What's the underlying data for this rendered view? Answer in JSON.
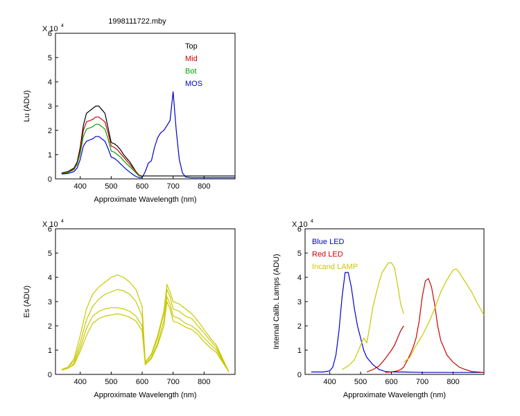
{
  "window": {
    "title": "1998111722.mby"
  },
  "chart_data": [
    {
      "id": "lu",
      "type": "line",
      "title": "1998111722.mby",
      "xlabel": "Approximate Wavelength (nm)",
      "ylabel": "Lu (ADU)",
      "exponent_label": "X 10",
      "exponent": "4",
      "xlim": [
        320,
        900
      ],
      "ylim": [
        0,
        6
      ],
      "xticks": [
        400,
        500,
        600,
        700,
        800
      ],
      "yticks": [
        0,
        1,
        2,
        3,
        4,
        5,
        6
      ],
      "legend_position": "top-right",
      "grid": false,
      "y_units": "x10^4 ADU",
      "series": [
        {
          "name": "Top",
          "color": "#000000",
          "x": [
            340,
            360,
            380,
            390,
            400,
            410,
            420,
            430,
            440,
            450,
            460,
            470,
            480,
            490,
            500,
            510,
            520,
            530,
            540,
            550,
            560,
            570,
            580,
            590,
            600,
            620,
            700,
            800,
            900
          ],
          "y": [
            0.25,
            0.3,
            0.45,
            0.7,
            1.3,
            2.2,
            2.7,
            2.8,
            2.9,
            3.0,
            3.0,
            2.85,
            2.7,
            2.1,
            1.5,
            1.45,
            1.35,
            1.2,
            1.0,
            0.85,
            0.7,
            0.5,
            0.3,
            0.15,
            0.12,
            0.12,
            0.12,
            0.12,
            0.12
          ]
        },
        {
          "name": "Mid",
          "color": "#cc0000",
          "x": [
            340,
            360,
            380,
            390,
            400,
            410,
            420,
            430,
            440,
            450,
            460,
            470,
            480,
            490,
            500,
            510,
            520,
            530,
            540,
            550,
            560,
            570,
            580,
            590,
            600
          ],
          "y": [
            0.25,
            0.28,
            0.42,
            0.65,
            1.2,
            2.0,
            2.35,
            2.4,
            2.45,
            2.55,
            2.55,
            2.45,
            2.35,
            1.9,
            1.35,
            1.3,
            1.2,
            1.05,
            0.9,
            0.75,
            0.6,
            0.45,
            0.3,
            0.15,
            0.12
          ]
        },
        {
          "name": "Bot",
          "color": "#00a000",
          "x": [
            340,
            360,
            380,
            390,
            400,
            410,
            420,
            430,
            440,
            450,
            460,
            470,
            480,
            490,
            500,
            510,
            520,
            530,
            540,
            550,
            560,
            570,
            580,
            590,
            600
          ],
          "y": [
            0.22,
            0.26,
            0.38,
            0.6,
            1.05,
            1.75,
            2.05,
            2.1,
            2.15,
            2.25,
            2.25,
            2.15,
            2.05,
            1.65,
            1.15,
            1.1,
            1.0,
            0.9,
            0.75,
            0.62,
            0.5,
            0.38,
            0.25,
            0.12,
            0.1
          ]
        },
        {
          "name": "MOS",
          "color": "#0000cc",
          "x": [
            340,
            360,
            380,
            390,
            400,
            410,
            420,
            430,
            440,
            450,
            460,
            470,
            480,
            490,
            500,
            510,
            520,
            530,
            540,
            550,
            560,
            570,
            580,
            590,
            600,
            610,
            620,
            630,
            640,
            650,
            660,
            670,
            680,
            690,
            695,
            700,
            705,
            710,
            720,
            730,
            740,
            760,
            800,
            900
          ],
          "y": [
            0.2,
            0.22,
            0.3,
            0.45,
            0.8,
            1.35,
            1.55,
            1.6,
            1.65,
            1.75,
            1.75,
            1.65,
            1.55,
            1.25,
            0.9,
            0.85,
            0.75,
            0.62,
            0.5,
            0.38,
            0.28,
            0.18,
            0.1,
            0.05,
            0.05,
            0.3,
            0.65,
            0.75,
            1.3,
            1.7,
            1.9,
            2.0,
            2.2,
            2.4,
            3.0,
            3.6,
            2.8,
            2.0,
            0.8,
            0.25,
            0.08,
            0.05,
            0.05,
            0.05
          ]
        }
      ]
    },
    {
      "id": "es",
      "type": "line",
      "xlabel": "Approximate Wavelength (nm)",
      "ylabel": "Es (ADU)",
      "exponent_label": "X 10",
      "exponent": "4",
      "xlim": [
        320,
        900
      ],
      "ylim": [
        0,
        6
      ],
      "xticks": [
        400,
        500,
        600,
        700,
        800
      ],
      "yticks": [
        0,
        1,
        2,
        3,
        4,
        5,
        6
      ],
      "grid": false,
      "y_units": "x10^4 ADU",
      "series": [
        {
          "color": "#c8c800",
          "x": [
            340,
            360,
            380,
            400,
            420,
            440,
            460,
            480,
            500,
            520,
            540,
            560,
            580,
            600,
            610,
            630,
            650,
            670,
            680,
            690,
            700,
            720,
            740,
            760,
            780,
            800,
            820,
            840,
            860,
            880
          ],
          "y": [
            0.2,
            0.3,
            0.55,
            1.3,
            2.25,
            2.8,
            3.1,
            3.3,
            3.4,
            3.5,
            3.45,
            3.3,
            3.0,
            2.4,
            0.5,
            0.8,
            1.5,
            2.5,
            3.5,
            3.2,
            2.7,
            2.6,
            2.4,
            2.3,
            2.0,
            1.7,
            1.4,
            1.1,
            0.6,
            0.1
          ]
        },
        {
          "color": "#c8c800",
          "x": [
            340,
            360,
            380,
            400,
            420,
            440,
            460,
            480,
            500,
            520,
            540,
            560,
            580,
            600,
            610,
            630,
            650,
            670,
            680,
            690,
            700,
            720,
            740,
            760,
            780,
            800,
            820,
            840,
            860,
            880
          ],
          "y": [
            0.2,
            0.3,
            0.65,
            1.6,
            2.7,
            3.3,
            3.6,
            3.8,
            4.0,
            4.1,
            4.0,
            3.8,
            3.5,
            2.8,
            0.5,
            0.85,
            1.6,
            2.6,
            3.7,
            3.4,
            3.0,
            2.9,
            2.7,
            2.5,
            2.2,
            1.85,
            1.5,
            1.2,
            0.65,
            0.1
          ]
        },
        {
          "color": "#c8c800",
          "x": [
            340,
            360,
            380,
            400,
            420,
            440,
            460,
            480,
            500,
            520,
            540,
            560,
            580,
            600,
            610,
            630,
            650,
            670,
            680,
            690,
            700,
            720,
            740,
            760,
            780,
            800,
            820,
            840,
            860,
            880
          ],
          "y": [
            0.18,
            0.25,
            0.45,
            1.1,
            1.9,
            2.4,
            2.6,
            2.7,
            2.75,
            2.75,
            2.7,
            2.6,
            2.4,
            2.0,
            0.45,
            0.7,
            1.3,
            2.2,
            3.2,
            2.9,
            2.4,
            2.3,
            2.1,
            2.0,
            1.8,
            1.5,
            1.25,
            1.0,
            0.55,
            0.1
          ]
        },
        {
          "color": "#c8c800",
          "x": [
            340,
            360,
            380,
            400,
            420,
            440,
            460,
            480,
            500,
            520,
            540,
            560,
            580,
            600,
            610,
            630,
            650,
            670,
            680,
            690,
            700,
            720,
            740,
            760,
            780,
            800,
            820,
            840,
            860,
            880
          ],
          "y": [
            0.18,
            0.25,
            0.4,
            0.95,
            1.6,
            2.1,
            2.3,
            2.4,
            2.45,
            2.5,
            2.45,
            2.35,
            2.2,
            1.8,
            0.4,
            0.65,
            1.2,
            2.0,
            3.0,
            2.7,
            2.2,
            2.1,
            1.95,
            1.85,
            1.65,
            1.35,
            1.1,
            0.9,
            0.5,
            0.1
          ]
        }
      ]
    },
    {
      "id": "lamps",
      "type": "line",
      "xlabel": "Approximate Wavelength (nm)",
      "ylabel": "Internal Calib. Lamps (ADU)",
      "exponent_label": "X 10",
      "exponent": "4",
      "xlim": [
        320,
        900
      ],
      "ylim": [
        0,
        6
      ],
      "xticks": [
        400,
        500,
        600,
        700,
        800
      ],
      "yticks": [
        0,
        1,
        2,
        3,
        4,
        5,
        6
      ],
      "legend_position": "top-left",
      "grid": false,
      "y_units": "x10^4 ADU",
      "series": [
        {
          "name": "Blue LED",
          "color": "#0000cc",
          "x": [
            340,
            380,
            400,
            410,
            420,
            430,
            440,
            450,
            460,
            470,
            480,
            490,
            500,
            510,
            520,
            540,
            560,
            580,
            600,
            640,
            700,
            800,
            900
          ],
          "y": [
            0.1,
            0.1,
            0.15,
            0.3,
            0.8,
            1.8,
            3.2,
            4.2,
            4.2,
            3.6,
            2.7,
            2.0,
            1.5,
            1.0,
            0.7,
            0.4,
            0.2,
            0.12,
            0.1,
            0.1,
            0.08,
            0.08,
            0.08
          ]
        },
        {
          "name": "Red LED",
          "color": "#cc0000",
          "x": [
            580,
            600,
            620,
            630,
            640,
            650,
            660,
            670,
            680,
            690,
            700,
            710,
            720,
            730,
            740,
            750,
            760,
            780,
            800,
            820,
            840,
            860,
            880,
            900
          ],
          "y": [
            0.08,
            0.1,
            0.15,
            0.2,
            0.3,
            0.55,
            0.8,
            1.1,
            1.5,
            2.2,
            3.2,
            3.85,
            3.95,
            3.6,
            2.9,
            2.0,
            1.4,
            0.8,
            0.5,
            0.3,
            0.2,
            0.12,
            0.1,
            0.08
          ]
        },
        {
          "name": "",
          "color": "#cc0000",
          "x": [
            520,
            540,
            560,
            580,
            600,
            610,
            620,
            630,
            640
          ],
          "y": [
            0.1,
            0.2,
            0.35,
            0.65,
            1.0,
            1.2,
            1.5,
            1.8,
            2.0
          ]
        },
        {
          "name": "Incand LAMP",
          "color": "#c8c800",
          "x": [
            440,
            460,
            480,
            500,
            510,
            520,
            530,
            540,
            550,
            560,
            570,
            580,
            590,
            600,
            610,
            620,
            630,
            640
          ],
          "y": [
            0.2,
            0.35,
            0.6,
            1.2,
            1.5,
            1.3,
            2.0,
            2.8,
            3.3,
            3.8,
            4.2,
            4.4,
            4.6,
            4.6,
            4.4,
            3.7,
            2.9,
            2.5
          ]
        },
        {
          "name": "",
          "color": "#c8c800",
          "x": [
            640,
            660,
            680,
            700,
            720,
            740,
            760,
            780,
            800,
            810,
            820,
            840,
            860,
            880,
            900
          ],
          "y": [
            0.5,
            0.7,
            1.2,
            1.6,
            2.1,
            2.7,
            3.4,
            3.9,
            4.3,
            4.35,
            4.2,
            3.8,
            3.4,
            2.9,
            2.45
          ]
        }
      ]
    }
  ]
}
